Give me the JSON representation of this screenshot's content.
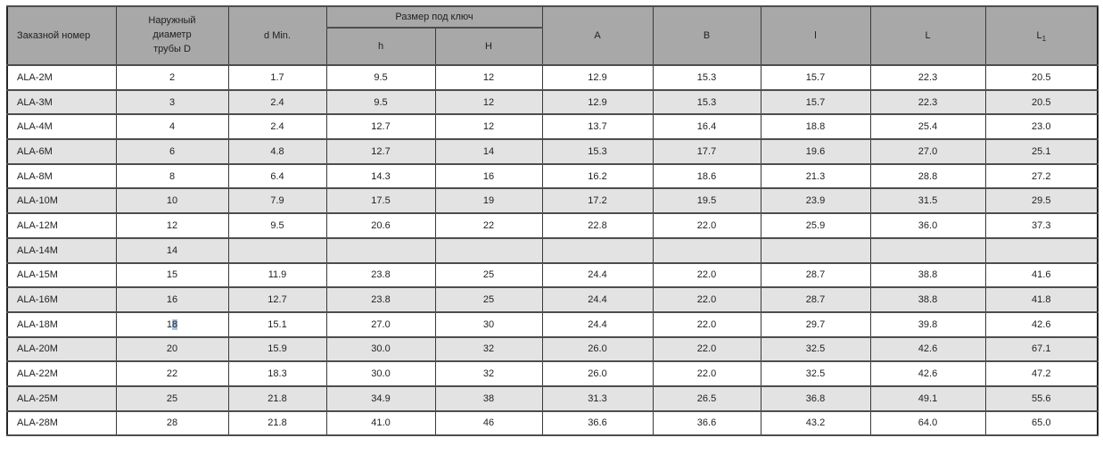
{
  "table": {
    "headers": {
      "order_number": "Заказной номер",
      "outer_diameter": "Наружный\nдиаметр\nтрубы D",
      "d_min": "d Min.",
      "wrench_size": "Размер под ключ",
      "h": "h",
      "H": "H",
      "A": "A",
      "B": "B",
      "l": "l",
      "L": "L",
      "L1_base": "L",
      "L1_sub": "1"
    },
    "rows": [
      {
        "name": "ALA-2M",
        "D": "2",
        "d_min": "1.7",
        "h": "9.5",
        "H": "12",
        "A": "12.9",
        "B": "15.3",
        "l": "15.7",
        "L": "22.3",
        "L1": "20.5"
      },
      {
        "name": "ALA-3M",
        "D": "3",
        "d_min": "2.4",
        "h": "9.5",
        "H": "12",
        "A": "12.9",
        "B": "15.3",
        "l": "15.7",
        "L": "22.3",
        "L1": "20.5"
      },
      {
        "name": "ALA-4M",
        "D": "4",
        "d_min": "2.4",
        "h": "12.7",
        "H": "12",
        "A": "13.7",
        "B": "16.4",
        "l": "18.8",
        "L": "25.4",
        "L1": "23.0"
      },
      {
        "name": "ALA-6M",
        "D": "6",
        "d_min": "4.8",
        "h": "12.7",
        "H": "14",
        "A": "15.3",
        "B": "17.7",
        "l": "19.6",
        "L": "27.0",
        "L1": "25.1"
      },
      {
        "name": "ALA-8M",
        "D": "8",
        "d_min": "6.4",
        "h": "14.3",
        "H": "16",
        "A": "16.2",
        "B": "18.6",
        "l": "21.3",
        "L": "28.8",
        "L1": "27.2"
      },
      {
        "name": "ALA-10M",
        "D": "10",
        "d_min": "7.9",
        "h": "17.5",
        "H": "19",
        "A": "17.2",
        "B": "19.5",
        "l": "23.9",
        "L": "31.5",
        "L1": "29.5"
      },
      {
        "name": "ALA-12M",
        "D": "12",
        "d_min": "9.5",
        "h": "20.6",
        "H": "22",
        "A": "22.8",
        "B": "22.0",
        "l": "25.9",
        "L": "36.0",
        "L1": "37.3"
      },
      {
        "name": "ALA-14M",
        "D": "14",
        "d_min": "",
        "h": "",
        "H": "",
        "A": "",
        "B": "",
        "l": "",
        "L": "",
        "L1": ""
      },
      {
        "name": "ALA-15M",
        "D": "15",
        "d_min": "11.9",
        "h": "23.8",
        "H": "25",
        "A": "24.4",
        "B": "22.0",
        "l": "28.7",
        "L": "38.8",
        "L1": "41.6"
      },
      {
        "name": "ALA-16M",
        "D": "16",
        "d_min": "12.7",
        "h": "23.8",
        "H": "25",
        "A": "24.4",
        "B": "22.0",
        "l": "28.7",
        "L": "38.8",
        "L1": "41.8"
      },
      {
        "name": "ALA-18M",
        "D": "18",
        "d_min": "15.1",
        "h": "27.0",
        "H": "30",
        "A": "24.4",
        "B": "22.0",
        "l": "29.7",
        "L": "39.8",
        "L1": "42.6"
      },
      {
        "name": "ALA-20M",
        "D": "20",
        "d_min": "15.9",
        "h": "30.0",
        "H": "32",
        "A": "26.0",
        "B": "22.0",
        "l": "32.5",
        "L": "42.6",
        "L1": "67.1"
      },
      {
        "name": "ALA-22M",
        "D": "22",
        "d_min": "18.3",
        "h": "30.0",
        "H": "32",
        "A": "26.0",
        "B": "22.0",
        "l": "32.5",
        "L": "42.6",
        "L1": "47.2"
      },
      {
        "name": "ALA-25M",
        "D": "25",
        "d_min": "21.8",
        "h": "34.9",
        "H": "38",
        "A": "31.3",
        "B": "26.5",
        "l": "36.8",
        "L": "49.1",
        "L1": "55.6"
      },
      {
        "name": "ALA-28M",
        "D": "28",
        "d_min": "21.8",
        "h": "41.0",
        "H": "46",
        "A": "36.6",
        "B": "36.6",
        "l": "43.2",
        "L": "64.0",
        "L1": "65.0"
      }
    ],
    "selection": {
      "row": "ALA-18M",
      "column": "D",
      "start": 1,
      "end": 2,
      "color": "#a9c4e1"
    },
    "colors": {
      "header_bg": "#a8a8a8",
      "stripe_bg": "#e3e3e3",
      "border": "#3a3a3a",
      "selection": "#a9c4e1"
    }
  }
}
